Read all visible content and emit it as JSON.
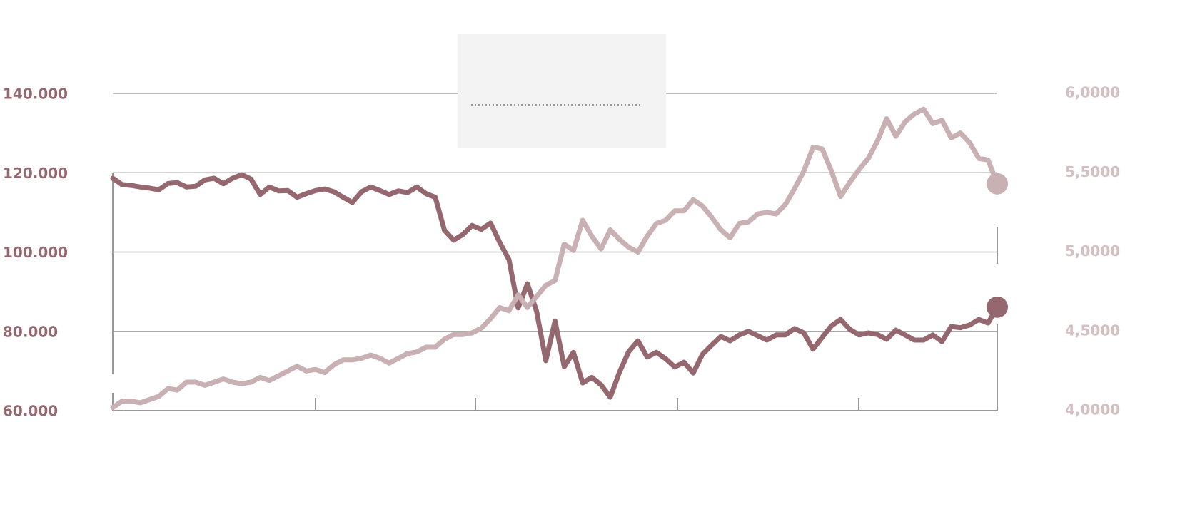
{
  "chart_data": {
    "type": "line",
    "ylim": [
      60000,
      140000
    ],
    "yticks": [
      {
        "value": 60000,
        "label": "60.000"
      },
      {
        "value": 80000,
        "label": "80.000"
      },
      {
        "value": 100000,
        "label": "100.000"
      },
      {
        "value": 120000,
        "label": "120.000"
      },
      {
        "value": 140000,
        "label": "140.000"
      }
    ],
    "y2lim": [
      4,
      6
    ],
    "y2ticks": [
      {
        "value": 4,
        "label": "4,0000"
      },
      {
        "value": 4.5,
        "label": "4,5000"
      },
      {
        "value": 5,
        "label": "5,0000"
      },
      {
        "value": 5.5,
        "label": "5,5000"
      },
      {
        "value": 6,
        "label": "6,0000"
      }
    ],
    "grid": true,
    "series": [
      {
        "color": "#956870",
        "values": [
          118600,
          117000,
          116800,
          116400,
          116100,
          115700,
          117300,
          117500,
          116400,
          116600,
          118200,
          118600,
          117200,
          118600,
          119500,
          118400,
          114500,
          116400,
          115400,
          115500,
          113800,
          114700,
          115500,
          115900,
          115200,
          113800,
          112500,
          115200,
          116400,
          115500,
          114500,
          115400,
          115000,
          116400,
          114700,
          113800,
          105500,
          103000,
          104400,
          106700,
          105700,
          107300,
          102400,
          98100,
          85900,
          92000,
          85000,
          72600,
          82600,
          71100,
          74700,
          67000,
          68400,
          66500,
          63400,
          69700,
          74900,
          77600,
          73500,
          74700,
          73100,
          71000,
          72200,
          69500,
          74200,
          76500,
          78700,
          77600,
          79100,
          80000,
          78900,
          77800,
          79100,
          79100,
          80700,
          79600,
          75500,
          78500,
          81400,
          83000,
          80500,
          79100,
          79600,
          79200,
          78000,
          80300,
          79100,
          77800,
          77800,
          79100,
          77400,
          81200,
          80900,
          81600,
          83000,
          82100,
          86100
        ]
      },
      {
        "color": "#c9b0b2",
        "axis": "y2",
        "values": [
          4.02,
          4.06,
          4.06,
          4.05,
          4.07,
          4.09,
          4.14,
          4.13,
          4.18,
          4.18,
          4.16,
          4.18,
          4.2,
          4.18,
          4.17,
          4.18,
          4.21,
          4.19,
          4.22,
          4.25,
          4.28,
          4.25,
          4.26,
          4.24,
          4.29,
          4.32,
          4.32,
          4.33,
          4.35,
          4.33,
          4.3,
          4.33,
          4.36,
          4.37,
          4.4,
          4.4,
          4.45,
          4.48,
          4.48,
          4.49,
          4.52,
          4.58,
          4.65,
          4.63,
          4.73,
          4.65,
          4.72,
          4.79,
          4.82,
          5.05,
          5.01,
          5.2,
          5.1,
          5.02,
          5.14,
          5.08,
          5.03,
          5.0,
          5.1,
          5.18,
          5.2,
          5.26,
          5.26,
          5.33,
          5.29,
          5.22,
          5.14,
          5.09,
          5.18,
          5.19,
          5.24,
          5.25,
          5.24,
          5.3,
          5.4,
          5.51,
          5.66,
          5.65,
          5.51,
          5.35,
          5.44,
          5.52,
          5.59,
          5.7,
          5.84,
          5.73,
          5.82,
          5.87,
          5.9,
          5.81,
          5.83,
          5.72,
          5.75,
          5.69,
          5.59,
          5.58,
          5.43
        ]
      }
    ]
  }
}
